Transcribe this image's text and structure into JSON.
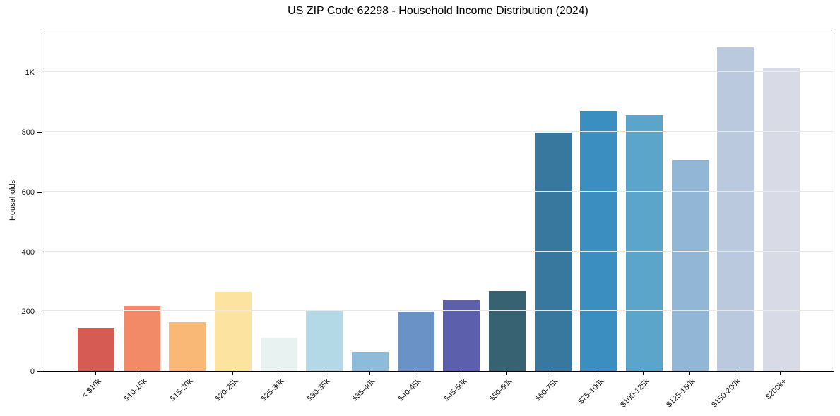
{
  "chart_data": {
    "type": "bar",
    "title": "US ZIP Code 62298 - Household Income Distribution (2024)",
    "xlabel": "",
    "ylabel": "Households",
    "categories": [
      "< $10k",
      "$10-15k",
      "$15-20k",
      "$20-25k",
      "$25-30k",
      "$30-35k",
      "$35-40k",
      "$40-45k",
      "$45-50k",
      "$50-60k",
      "$60-75k",
      "$75-100k",
      "$100-125k",
      "$125-150k",
      "$150-200k",
      "$200k+"
    ],
    "values": [
      145,
      218,
      164,
      265,
      112,
      201,
      64,
      199,
      237,
      266,
      798,
      870,
      856,
      706,
      1084,
      1016
    ],
    "bar_colors": [
      "#d65b52",
      "#f28a68",
      "#fab877",
      "#fde3a0",
      "#e7f2f1",
      "#b4d9e6",
      "#8cbcd9",
      "#6b92c6",
      "#5c5fab",
      "#366271",
      "#38789e",
      "#3a8fc0",
      "#5ba4ca",
      "#92b6d5",
      "#bac9de",
      "#d8dae5"
    ],
    "ylim": [
      0,
      1145
    ],
    "yticks": [
      {
        "value": 0,
        "label": "0"
      },
      {
        "value": 200,
        "label": "200"
      },
      {
        "value": 400,
        "label": "400"
      },
      {
        "value": 600,
        "label": "600"
      },
      {
        "value": 800,
        "label": "800"
      },
      {
        "value": 1000,
        "label": "1K"
      }
    ],
    "gridline_values": [
      200,
      400,
      600,
      800,
      1000
    ],
    "grid": "horizontal",
    "legend": "none",
    "colors": {
      "background": "#ffffff",
      "spine": "#000000",
      "grid": "#e9e9e9",
      "tick_text": "#111111",
      "title_text": "#000000"
    }
  }
}
